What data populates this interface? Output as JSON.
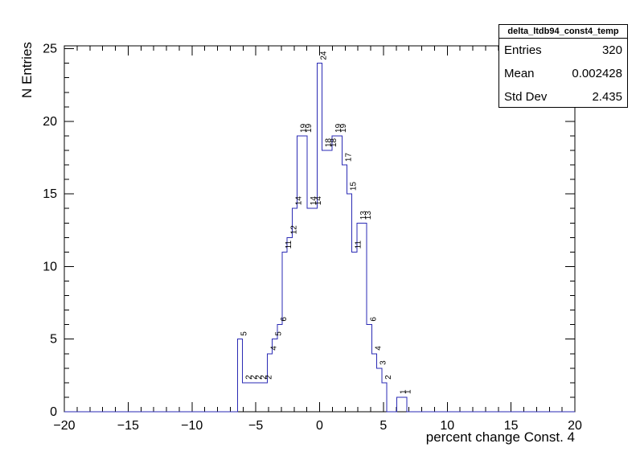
{
  "figure": {
    "background": "#ffffff",
    "frame_color": "#000000",
    "hist_line_color": "#2a2ab4",
    "label_color": "#000000"
  },
  "stats_box": {
    "title": "delta_ltdb94_const4_temp",
    "rows": [
      {
        "label": "Entries",
        "value": "320"
      },
      {
        "label": "Mean",
        "value": "0.002428"
      },
      {
        "label": "Std Dev",
        "value": "2.435"
      }
    ]
  },
  "chart_data": {
    "type": "bar",
    "title": "delta_ltdb94_const4_temp",
    "xlabel": "percent change Const. 4",
    "ylabel": "N Entries",
    "xlim": [
      -20,
      20
    ],
    "ylim": [
      0,
      25.2
    ],
    "grid": false,
    "minor_tick_step": 1,
    "x_ticks": [
      {
        "value": -20,
        "label": "−20"
      },
      {
        "value": -15,
        "label": "−15"
      },
      {
        "value": -10,
        "label": "−10"
      },
      {
        "value": -5,
        "label": "−5"
      },
      {
        "value": 0,
        "label": "0"
      },
      {
        "value": 5,
        "label": "5"
      },
      {
        "value": 10,
        "label": "10"
      },
      {
        "value": 15,
        "label": "15"
      },
      {
        "value": 20,
        "label": "20"
      }
    ],
    "y_ticks": [
      {
        "value": 0,
        "label": "0"
      },
      {
        "value": 5,
        "label": "5"
      },
      {
        "value": 10,
        "label": "10"
      },
      {
        "value": 15,
        "label": "15"
      },
      {
        "value": 20,
        "label": "20"
      },
      {
        "value": 25,
        "label": "25"
      }
    ],
    "entries": 320,
    "mean": 0.002428,
    "std_dev": 2.435,
    "histogram": {
      "bin_start": -6.44,
      "bin_width": 0.39,
      "counts": [
        5,
        2,
        2,
        2,
        2,
        2,
        4,
        5,
        6,
        11,
        12,
        14,
        19,
        19,
        14,
        14,
        24,
        18,
        18,
        19,
        19,
        17,
        15,
        11,
        13,
        13,
        6,
        4,
        3,
        2,
        0,
        0,
        1,
        1
      ]
    }
  }
}
